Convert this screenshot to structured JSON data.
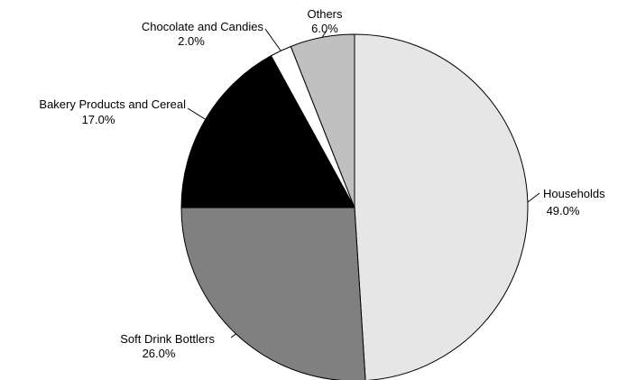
{
  "chart_data": {
    "type": "pie",
    "title": "",
    "start": "12 o'clock, clockwise",
    "slices": [
      {
        "label": "Households",
        "value": 49.0,
        "display": "49.0%",
        "color": "#e6e6e6"
      },
      {
        "label": "Soft Drink Bottlers",
        "value": 26.0,
        "display": "26.0%",
        "color": "#808080"
      },
      {
        "label": "Bakery Products and Cereal",
        "value": 17.0,
        "display": "17.0%",
        "color": "#000000"
      },
      {
        "label": "Chocolate and Candies",
        "value": 2.0,
        "display": "2.0%",
        "color": "#ffffff"
      },
      {
        "label": "Others",
        "value": 6.0,
        "display": "6.0%",
        "color": "#c0c0c0"
      }
    ]
  }
}
